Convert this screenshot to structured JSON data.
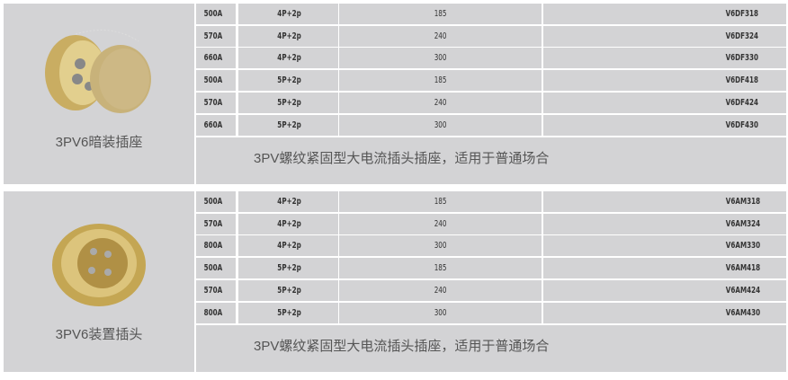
{
  "products": [
    {
      "name": "3PV6暗装插座",
      "image": "flush-socket-with-cap",
      "description": "3PV螺纹紧固型大电流插头插座，适用于普通场合",
      "rows": [
        [
          "500A",
          "4P+2p",
          "185",
          "V6DF318"
        ],
        [
          "570A",
          "4P+2p",
          "240",
          "V6DF324"
        ],
        [
          "660A",
          "4P+2p",
          "300",
          "V6DF330"
        ],
        [
          "500A",
          "5P+2p",
          "185",
          "V6DF418"
        ],
        [
          "570A",
          "5P+2p",
          "240",
          "V6DF424"
        ],
        [
          "660A",
          "5P+2p",
          "300",
          "V6DF430"
        ]
      ]
    },
    {
      "name": "3PV6装置插头",
      "image": "panel-plug",
      "description": "3PV螺纹紧固型大电流插头插座，适用于普通场合",
      "rows": [
        [
          "500A",
          "4P+2p",
          "185",
          "V6AM318"
        ],
        [
          "570A",
          "4P+2p",
          "240",
          "V6AM324"
        ],
        [
          "800A",
          "4P+2p",
          "300",
          "V6AM330"
        ],
        [
          "500A",
          "5P+2p",
          "185",
          "V6AM418"
        ],
        [
          "570A",
          "5P+2p",
          "240",
          "V6AM424"
        ],
        [
          "800A",
          "5P+2p",
          "300",
          "V6AM430"
        ]
      ]
    }
  ],
  "colors": {
    "cell_bg": "#d3d3d5",
    "brass": "#c9ad62"
  }
}
